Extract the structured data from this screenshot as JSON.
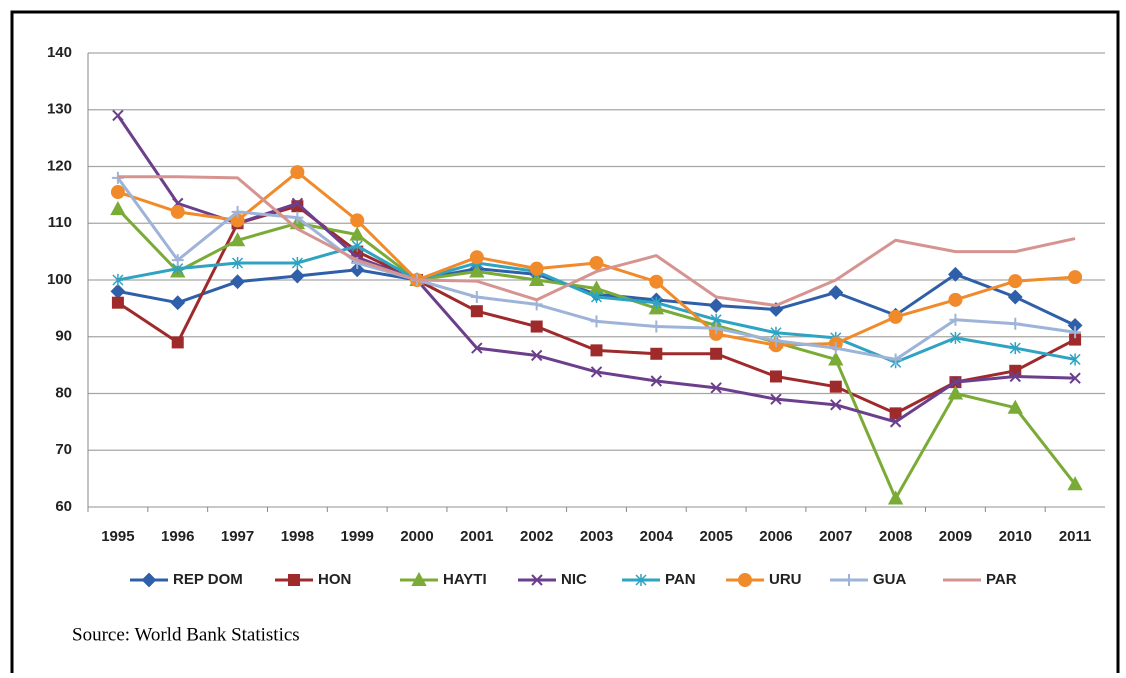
{
  "chart_data": {
    "type": "line",
    "categories": [
      "1995",
      "1996",
      "1997",
      "1998",
      "1999",
      "2000",
      "2001",
      "2002",
      "2003",
      "2004",
      "2005",
      "2006",
      "2007",
      "2008",
      "2009",
      "2010",
      "2011"
    ],
    "ylim": [
      60,
      140
    ],
    "yticks": [
      60,
      70,
      80,
      90,
      100,
      110,
      120,
      130,
      140
    ],
    "grid": true,
    "legend": "bottom",
    "series": [
      {
        "name": "REP DOM",
        "color": "#2e5fa8",
        "marker": "diamond",
        "values": [
          98,
          96,
          99.7,
          100.7,
          101.8,
          100,
          102,
          101,
          97.5,
          96.5,
          95.5,
          94.8,
          97.8,
          93.8,
          101,
          97,
          92
        ]
      },
      {
        "name": "HON",
        "color": "#9e2a2b",
        "marker": "square",
        "values": [
          96,
          89,
          110,
          113,
          105,
          100,
          94.5,
          91.8,
          87.6,
          87,
          87,
          83,
          81.2,
          76.5,
          82,
          84,
          89.5
        ]
      },
      {
        "name": "HAYTI",
        "color": "#7aab36",
        "marker": "triangle",
        "values": [
          112.5,
          101.5,
          107,
          110,
          108,
          100,
          101.5,
          100,
          98.5,
          95,
          92,
          89,
          86,
          61.5,
          80,
          77.5,
          64
        ]
      },
      {
        "name": "NIC",
        "color": "#6b3f8c",
        "marker": "x",
        "values": [
          129,
          113.5,
          110,
          113.5,
          104,
          100,
          88,
          86.7,
          83.8,
          82.2,
          81,
          79,
          78,
          75,
          82,
          83,
          82.7
        ]
      },
      {
        "name": "PAN",
        "color": "#2ea3c2",
        "marker": "star",
        "values": [
          100,
          102,
          103,
          103,
          106,
          100,
          103,
          101.5,
          97,
          96,
          93,
          90.7,
          89.8,
          85.5,
          89.8,
          88,
          86
        ]
      },
      {
        "name": "URU",
        "color": "#f08a2a",
        "marker": "circle",
        "values": [
          115.5,
          112,
          110.5,
          119,
          110.5,
          100,
          104,
          102,
          103,
          99.7,
          90.5,
          88.5,
          88.8,
          93.5,
          96.5,
          99.8,
          100.5
        ]
      },
      {
        "name": "GUA",
        "color": "#9db3d8",
        "marker": "plus",
        "values": [
          118,
          103.5,
          112,
          111,
          103,
          100,
          97,
          95.7,
          92.7,
          91.8,
          91.5,
          89.3,
          88,
          86,
          93,
          92.3,
          90.8
        ]
      },
      {
        "name": "PAR",
        "color": "#d69491",
        "marker": "none",
        "values": [
          118.2,
          118.2,
          118,
          109,
          103.5,
          100,
          99.8,
          96.5,
          101.5,
          104.3,
          97,
          95.5,
          100,
          107,
          105,
          105,
          107.3
        ]
      }
    ],
    "source": "Source:  World Bank Statistics"
  }
}
